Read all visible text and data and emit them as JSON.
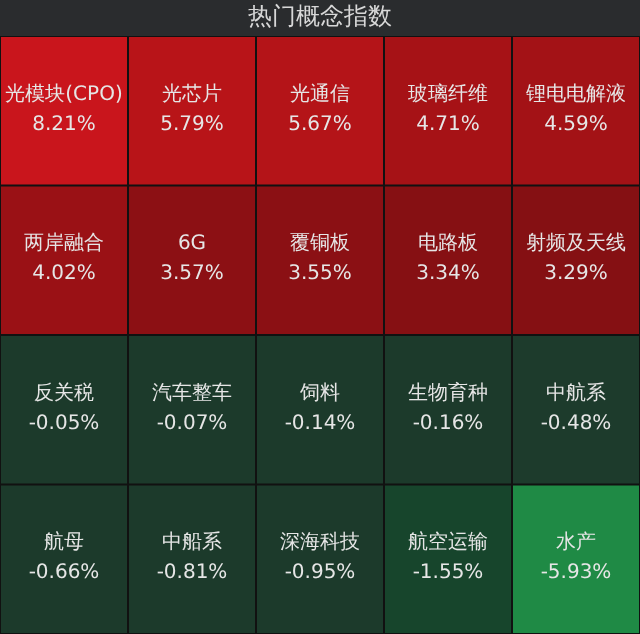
{
  "chart_data": {
    "type": "other",
    "title": "热门概念指数",
    "categories": [
      "光模块(CPO)",
      "光芯片",
      "光通信",
      "玻璃纤维",
      "锂电电解液",
      "两岸融合",
      "6G",
      "覆铜板",
      "电路板",
      "射频及天线",
      "反关税",
      "汽车整车",
      "饲料",
      "生物育种",
      "中航系",
      "航母",
      "中船系",
      "深海科技",
      "航空运输",
      "水产"
    ],
    "values": [
      8.21,
      5.79,
      5.67,
      4.71,
      4.59,
      4.02,
      3.57,
      3.55,
      3.34,
      3.29,
      -0.05,
      -0.07,
      -0.14,
      -0.16,
      -0.48,
      -0.66,
      -0.81,
      -0.95,
      -1.55,
      -5.93
    ],
    "value_labels": [
      "8.21%",
      "5.79%",
      "5.67%",
      "4.71%",
      "4.59%",
      "4.02%",
      "3.57%",
      "3.55%",
      "3.34%",
      "3.29%",
      "-0.05%",
      "-0.07%",
      "-0.14%",
      "-0.16%",
      "-0.48%",
      "-0.66%",
      "-0.81%",
      "-0.95%",
      "-1.55%",
      "-5.93%"
    ],
    "colors": [
      "#c9151c",
      "#b81418",
      "#b41418",
      "#a61216",
      "#a31216",
      "#9a1115",
      "#8c1014",
      "#8b1014",
      "#861013",
      "#851013",
      "#1c3a2b",
      "#1c3a2b",
      "#1c3a2b",
      "#1c3a2b",
      "#1d3b2c",
      "#1c3a2b",
      "#1c3a2b",
      "#1c3a2b",
      "#17452c",
      "#1f8a45"
    ]
  }
}
